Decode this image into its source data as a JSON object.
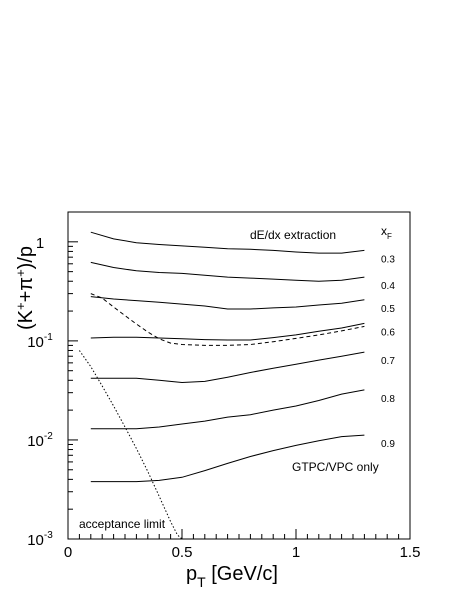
{
  "chart_data": {
    "type": "line",
    "title": "",
    "xlabel": {
      "main": "p",
      "sub": "T",
      "rest": " [GeV/c]"
    },
    "ylabel": {
      "open": "(K",
      "sup1": "+",
      "mid": "+π",
      "sup2": "+",
      "close": ")/p"
    },
    "xlim": [
      0,
      1.5
    ],
    "ylim": [
      0.001,
      2
    ],
    "yscale": "log",
    "xticks": [
      {
        "value": 0,
        "label": "0"
      },
      {
        "value": 0.5,
        "label": "0.5"
      },
      {
        "value": 1,
        "label": "1"
      },
      {
        "value": 1.5,
        "label": "1.5"
      }
    ],
    "yticks": [
      {
        "value": 1,
        "base": "1",
        "exp": ""
      },
      {
        "value": 0.1,
        "base": "10",
        "exp": "-1"
      },
      {
        "value": 0.01,
        "base": "10",
        "exp": "-2"
      },
      {
        "value": 0.001,
        "base": "10",
        "exp": "-3"
      }
    ],
    "annotations": {
      "top_right": "dE/dx extraction",
      "bottom_right": "GTPC/VPC only",
      "bottom_left": "acceptance limit",
      "legend_header": {
        "main": "x",
        "sub": "F"
      }
    },
    "series": [
      {
        "name": "0.3",
        "style": "solid",
        "x": [
          0.1,
          0.2,
          0.3,
          0.4,
          0.5,
          0.6,
          0.7,
          0.8,
          0.9,
          1.0,
          1.1,
          1.2,
          1.3
        ],
        "y": [
          1.25,
          1.07,
          0.98,
          0.94,
          0.91,
          0.88,
          0.85,
          0.84,
          0.82,
          0.79,
          0.77,
          0.77,
          0.82
        ]
      },
      {
        "name": "0.4",
        "style": "solid",
        "x": [
          0.1,
          0.2,
          0.3,
          0.4,
          0.5,
          0.6,
          0.7,
          0.8,
          0.9,
          1.0,
          1.1,
          1.2,
          1.3
        ],
        "y": [
          0.62,
          0.55,
          0.51,
          0.49,
          0.48,
          0.46,
          0.44,
          0.43,
          0.42,
          0.41,
          0.4,
          0.41,
          0.44
        ]
      },
      {
        "name": "0.5",
        "style": "solid",
        "x": [
          0.1,
          0.2,
          0.3,
          0.4,
          0.5,
          0.6,
          0.7,
          0.8,
          0.9,
          1.0,
          1.1,
          1.2,
          1.3
        ],
        "y": [
          0.28,
          0.265,
          0.255,
          0.245,
          0.235,
          0.225,
          0.21,
          0.21,
          0.215,
          0.22,
          0.23,
          0.24,
          0.26
        ]
      },
      {
        "name": "0.6",
        "style": "solid",
        "x": [
          0.1,
          0.2,
          0.3,
          0.4,
          0.5,
          0.6,
          0.7,
          0.8,
          0.9,
          1.0,
          1.1,
          1.2,
          1.3
        ],
        "y": [
          0.107,
          0.109,
          0.109,
          0.107,
          0.105,
          0.103,
          0.102,
          0.102,
          0.108,
          0.115,
          0.125,
          0.135,
          0.15
        ]
      },
      {
        "name": "0.7",
        "style": "solid",
        "x": [
          0.1,
          0.2,
          0.3,
          0.4,
          0.5,
          0.6,
          0.7,
          0.8,
          0.9,
          1.0,
          1.1,
          1.2,
          1.3
        ],
        "y": [
          0.042,
          0.042,
          0.042,
          0.04,
          0.038,
          0.039,
          0.043,
          0.048,
          0.053,
          0.058,
          0.064,
          0.07,
          0.077
        ]
      },
      {
        "name": "0.8",
        "style": "solid",
        "x": [
          0.1,
          0.2,
          0.3,
          0.4,
          0.5,
          0.6,
          0.7,
          0.8,
          0.9,
          1.0,
          1.1,
          1.2,
          1.3
        ],
        "y": [
          0.013,
          0.013,
          0.013,
          0.0135,
          0.0145,
          0.0155,
          0.017,
          0.018,
          0.02,
          0.022,
          0.025,
          0.029,
          0.032
        ]
      },
      {
        "name": "0.9",
        "style": "solid",
        "x": [
          0.1,
          0.2,
          0.3,
          0.4,
          0.5,
          0.6,
          0.7,
          0.8,
          0.9,
          1.0,
          1.1,
          1.2,
          1.3
        ],
        "y": [
          0.0038,
          0.0038,
          0.0038,
          0.0039,
          0.0042,
          0.0049,
          0.0058,
          0.0068,
          0.0078,
          0.0088,
          0.0098,
          0.0108,
          0.0112
        ]
      },
      {
        "name": "",
        "style": "dashed",
        "x": [
          0.1,
          0.15,
          0.2,
          0.25,
          0.3,
          0.35,
          0.4,
          0.45,
          0.5,
          0.6,
          0.7,
          0.8,
          0.9,
          1.0,
          1.1,
          1.2,
          1.3
        ],
        "y": [
          0.3,
          0.27,
          0.22,
          0.18,
          0.148,
          0.123,
          0.105,
          0.095,
          0.092,
          0.09,
          0.09,
          0.092,
          0.098,
          0.106,
          0.115,
          0.126,
          0.14
        ]
      },
      {
        "name": "",
        "style": "dotted",
        "x": [
          0.05,
          0.1,
          0.15,
          0.2,
          0.25,
          0.3,
          0.35,
          0.4,
          0.45,
          0.48,
          0.5
        ],
        "y": [
          0.08,
          0.055,
          0.035,
          0.022,
          0.0135,
          0.0082,
          0.0048,
          0.0027,
          0.0015,
          0.0011,
          0.001
        ]
      }
    ]
  }
}
